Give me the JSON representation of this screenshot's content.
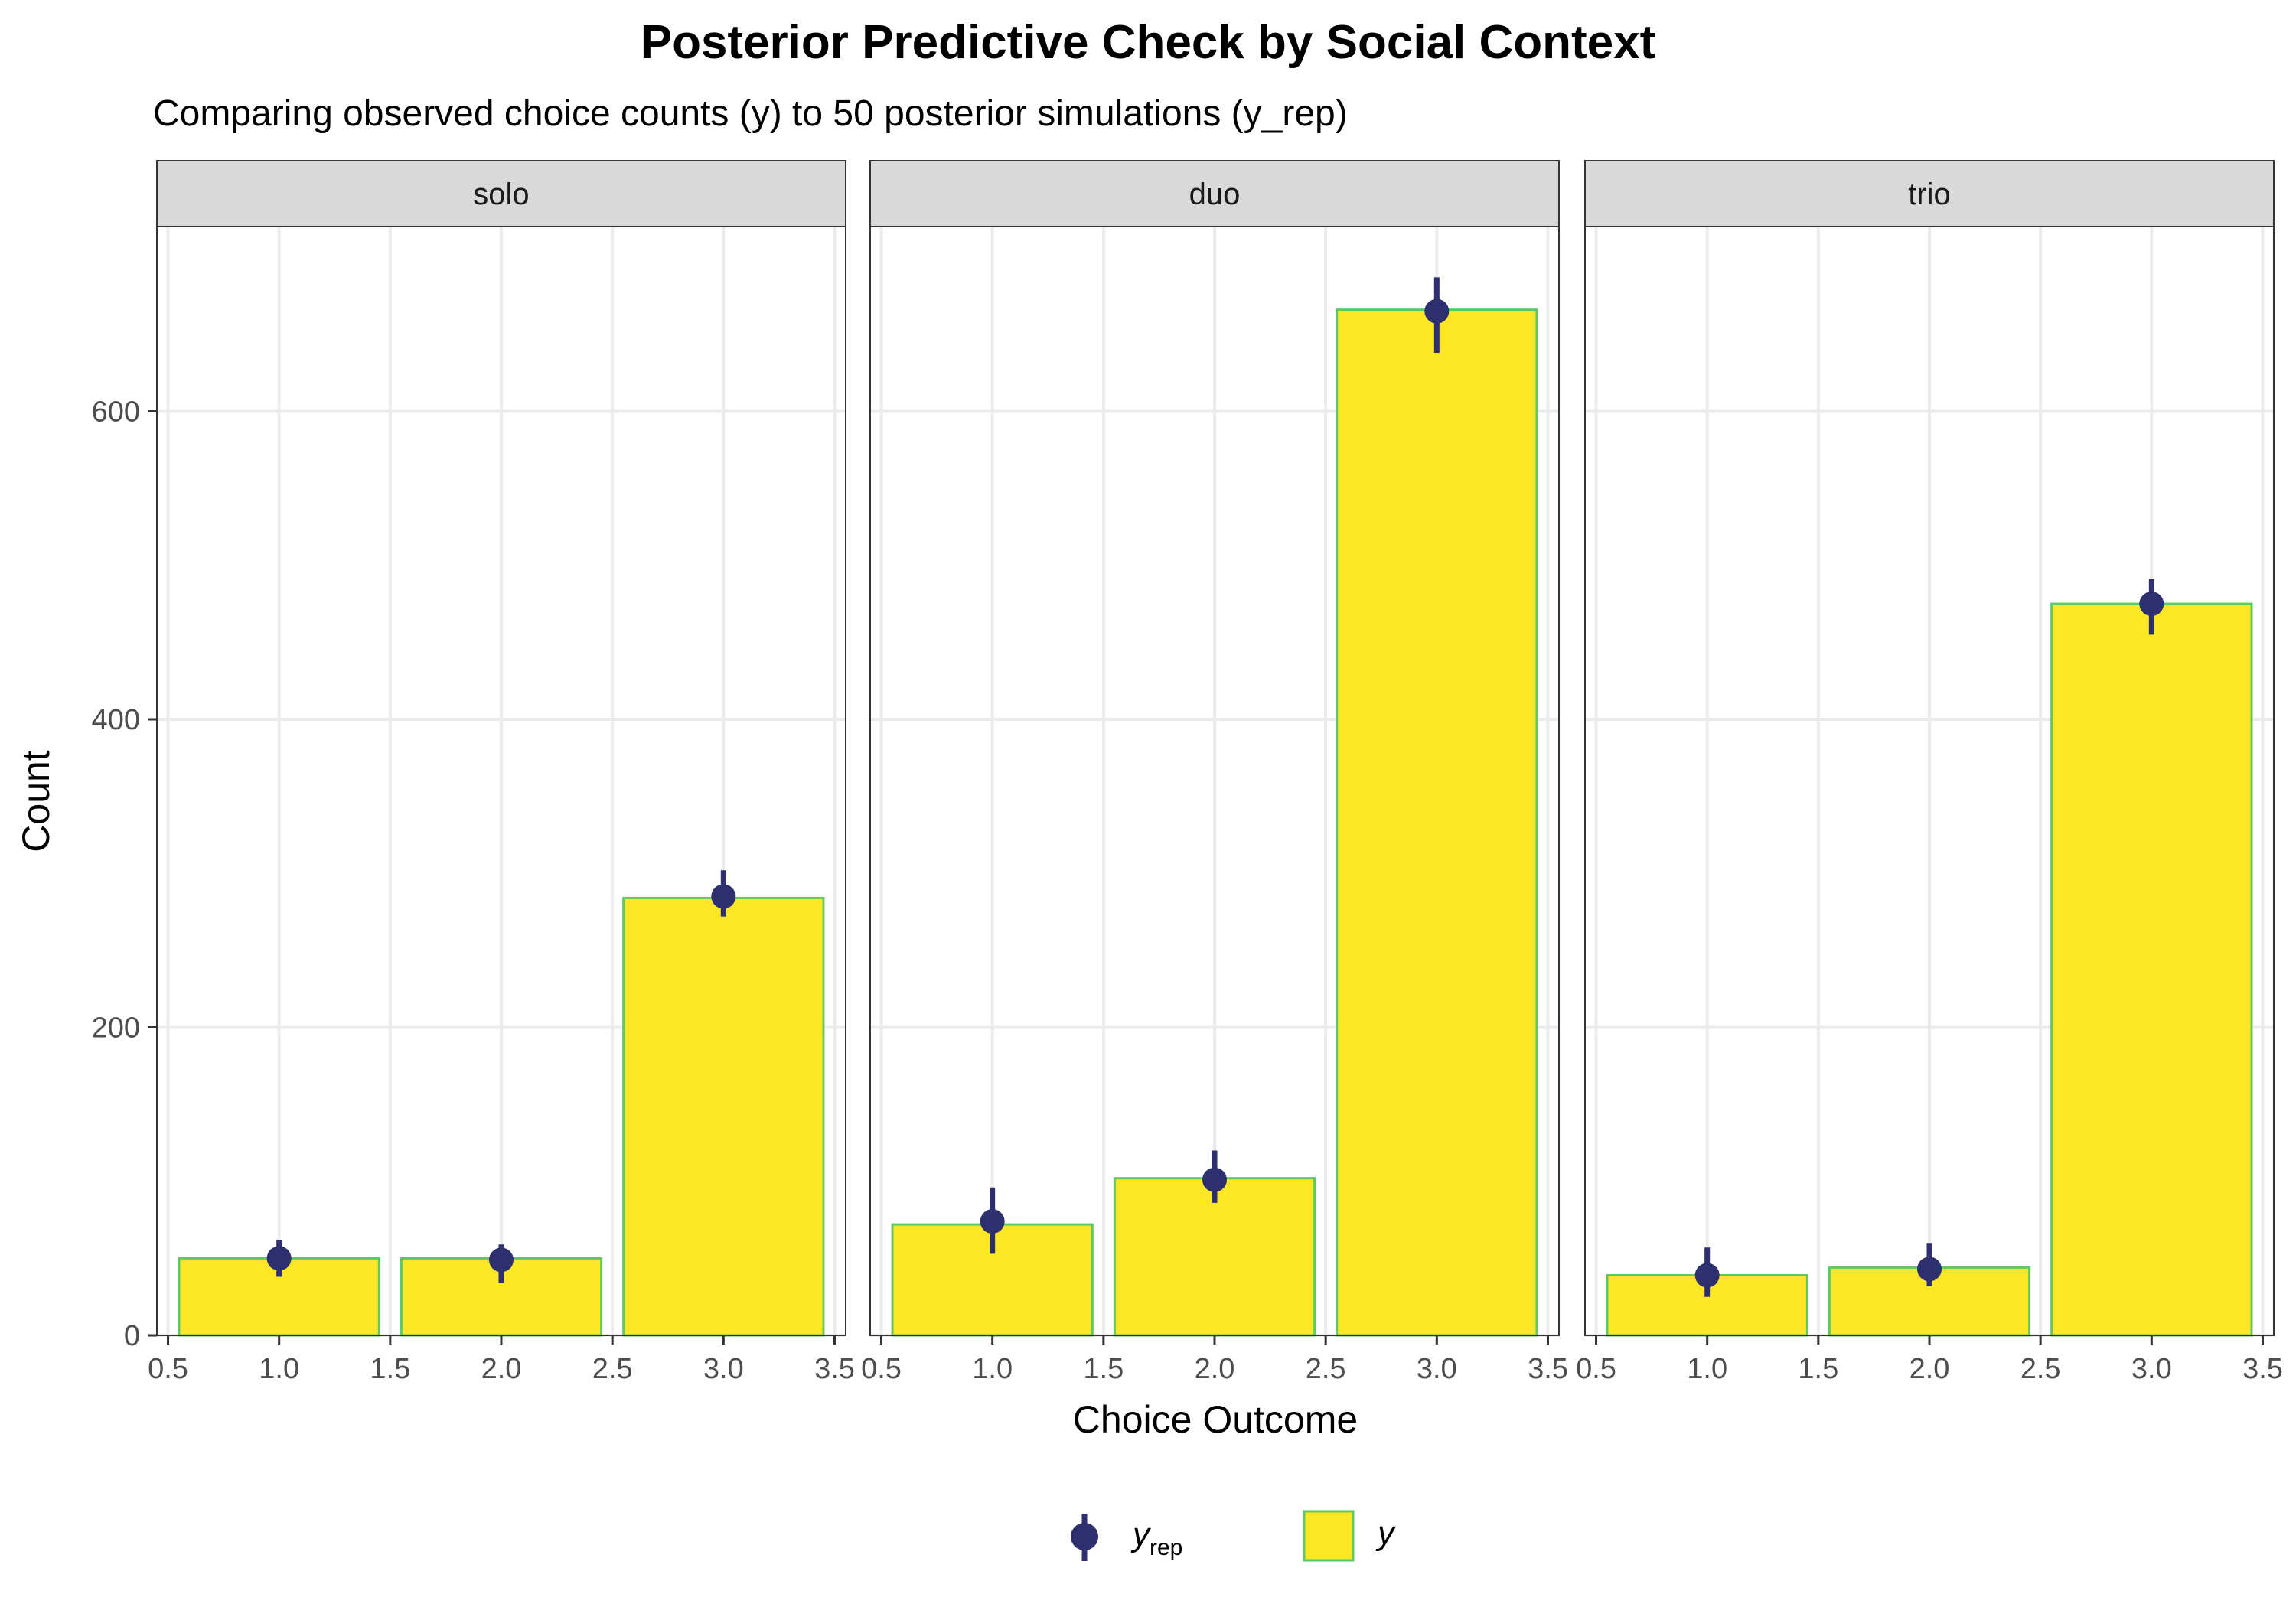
{
  "chart_data": {
    "type": "bar",
    "title": "Posterior Predictive Check by Social Context",
    "subtitle": "Comparing observed choice counts (y) to 50 posterior simulations (y_rep)",
    "xlabel": "Choice Outcome",
    "ylabel": "Count",
    "xlim": [
      0.45,
      3.55
    ],
    "ylim": [
      0,
      720
    ],
    "x_ticks": [
      0.5,
      1.0,
      1.5,
      2.0,
      2.5,
      3.0,
      3.5
    ],
    "x_tick_labels": [
      "0.5",
      "1.0",
      "1.5",
      "2.0",
      "2.5",
      "3.0",
      "3.5"
    ],
    "y_ticks": [
      0,
      200,
      400,
      600
    ],
    "y_tick_labels": [
      "0",
      "200",
      "400",
      "600"
    ],
    "grid": true,
    "legend_position": "bottom",
    "legend": [
      {
        "key": "y_rep",
        "label": "y",
        "sub": "rep",
        "symbol": "point-interval"
      },
      {
        "key": "y",
        "label": "y",
        "symbol": "filled-box"
      }
    ],
    "colors": {
      "bar_fill": "#FDE725",
      "bar_outline": "#5EC962",
      "point": "#2D2F6E",
      "grid": "#EBEBEB",
      "strip_bg": "#D9D9D9",
      "panel_border": "#333333"
    },
    "panels": [
      {
        "name": "solo",
        "categories": [
          1,
          2,
          3
        ],
        "y": [
          50,
          50,
          284
        ],
        "y_rep": [
          {
            "x": 1,
            "median": 50,
            "low": 38,
            "high": 62
          },
          {
            "x": 2,
            "median": 49,
            "low": 34,
            "high": 59
          },
          {
            "x": 3,
            "median": 285,
            "low": 272,
            "high": 302
          }
        ]
      },
      {
        "name": "duo",
        "categories": [
          1,
          2,
          3
        ],
        "y": [
          72,
          102,
          666
        ],
        "y_rep": [
          {
            "x": 1,
            "median": 74,
            "low": 53,
            "high": 96
          },
          {
            "x": 2,
            "median": 101,
            "low": 86,
            "high": 120
          },
          {
            "x": 3,
            "median": 665,
            "low": 638,
            "high": 687
          }
        ]
      },
      {
        "name": "trio",
        "categories": [
          1,
          2,
          3
        ],
        "y": [
          39,
          44,
          475
        ],
        "y_rep": [
          {
            "x": 1,
            "median": 39,
            "low": 25,
            "high": 57
          },
          {
            "x": 2,
            "median": 43,
            "low": 32,
            "high": 60
          },
          {
            "x": 3,
            "median": 475,
            "low": 455,
            "high": 491
          }
        ]
      }
    ]
  }
}
